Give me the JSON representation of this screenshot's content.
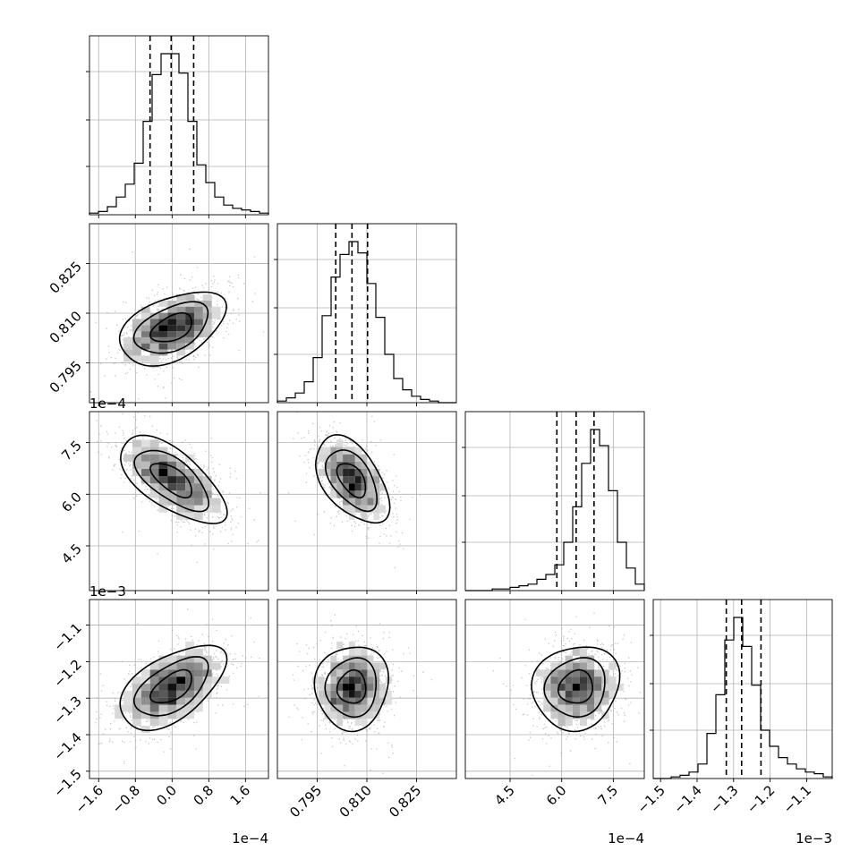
{
  "chart_data": {
    "type": "corner",
    "grid": true,
    "parameters": [
      {
        "index": 0,
        "range": [
          -1.8,
          2.1
        ],
        "ticks": [
          -1.6,
          -0.8,
          0.0,
          0.8,
          1.6
        ],
        "tick_labels": [
          "−1.6",
          "−0.8",
          "0.0",
          "0.8",
          "1.6"
        ],
        "offset_label": "1e−4",
        "mean": 0.0,
        "std": 0.5,
        "quantiles": [
          -0.48,
          -0.02,
          0.47
        ],
        "hist_bins_edges_start": -1.8,
        "hist_bin_width": 0.195,
        "hist_counts": [
          1,
          2,
          5,
          11,
          19,
          32,
          58,
          87,
          100,
          100,
          88,
          58,
          31,
          20,
          11,
          6,
          4,
          3,
          2,
          1
        ]
      },
      {
        "index": 1,
        "range": [
          0.783,
          0.837
        ],
        "ticks": [
          0.795,
          0.81,
          0.825
        ],
        "tick_labels": [
          "0.795",
          "0.810",
          "0.825"
        ],
        "offset_label": "",
        "mean": 0.8055,
        "std": 0.0048,
        "quantiles": [
          0.8006,
          0.8055,
          0.8102
        ],
        "hist_bins_edges_start": 0.783,
        "hist_bin_width": 0.0027,
        "hist_counts": [
          1,
          3,
          6,
          13,
          28,
          54,
          78,
          92,
          100,
          93,
          74,
          53,
          30,
          15,
          8,
          4,
          2,
          1,
          0,
          0
        ]
      },
      {
        "index": 2,
        "range": [
          3.2,
          8.4
        ],
        "ticks": [
          4.5,
          6.0,
          7.5
        ],
        "tick_labels": [
          "4.5",
          "6.0",
          "7.5"
        ],
        "offset_label": "1e−4",
        "mean": 6.42,
        "std": 0.55,
        "quantiles": [
          5.86,
          6.42,
          6.94
        ],
        "hist_bins_edges_start": 3.2,
        "hist_bin_width": 0.26,
        "hist_counts": [
          0,
          0,
          0,
          1,
          1,
          2,
          3,
          4,
          7,
          10,
          16,
          30,
          52,
          79,
          100,
          90,
          62,
          30,
          14,
          4
        ]
      },
      {
        "index": 3,
        "range": [
          -1.52,
          -1.03
        ],
        "ticks": [
          -1.5,
          -1.4,
          -1.3,
          -1.2,
          -1.1
        ],
        "tick_labels": [
          "−1.5",
          "−1.4",
          "−1.3",
          "−1.2",
          "−1.1"
        ],
        "offset_label": "1e−3",
        "mean": -1.27,
        "std": 0.05,
        "quantiles": [
          -1.32,
          -1.278,
          -1.225
        ],
        "hist_bins_edges_start": -1.52,
        "hist_bin_width": 0.0245,
        "hist_counts": [
          0,
          0,
          1,
          2,
          4,
          9,
          28,
          52,
          86,
          100,
          82,
          58,
          30,
          20,
          13,
          9,
          6,
          4,
          3,
          1
        ]
      }
    ],
    "pairs": [
      {
        "x": 0,
        "y": 1,
        "correlation": 0.45
      },
      {
        "x": 0,
        "y": 2,
        "correlation": -0.65
      },
      {
        "x": 1,
        "y": 2,
        "correlation": -0.5
      },
      {
        "x": 0,
        "y": 3,
        "correlation": 0.55
      },
      {
        "x": 1,
        "y": 3,
        "correlation": 0.05
      },
      {
        "x": 2,
        "y": 3,
        "correlation": 0.1
      }
    ],
    "bottom_offset_labels": [
      "1e−4",
      "",
      "1e−4",
      "1e−3"
    ],
    "left_offset_labels": [
      "",
      "",
      "1e−4",
      "1e−3"
    ]
  }
}
